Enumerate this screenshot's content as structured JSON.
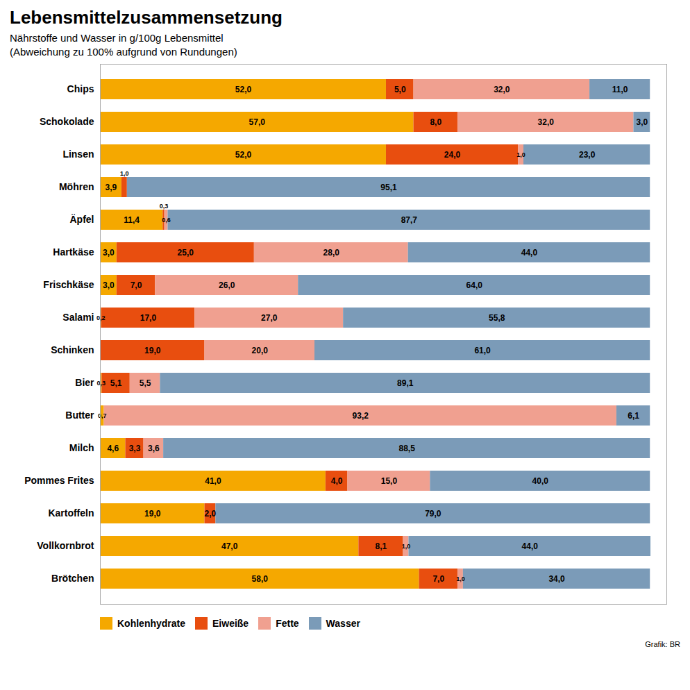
{
  "chart_data": {
    "type": "bar",
    "orientation": "horizontal",
    "stacked": true,
    "data_labels": true,
    "tick_labels": "y",
    "grid": false,
    "legend": "bottom",
    "title": "Lebensmittelzusammensetzung",
    "subtitle": [
      "Nährstoffe und Wasser in g/100g Lebensmittel",
      "(Abweichung zu 100% aufgrund von Rundungen)"
    ],
    "source": "Grafik: BR",
    "categories": [
      "Chips",
      "Schokolade",
      "Linsen",
      "Möhren",
      "Äpfel",
      "Hartkäse",
      "Frischkäse",
      "Salami",
      "Schinken",
      "Bier",
      "Butter",
      "Milch",
      "Pommes Frites",
      "Kartoffeln",
      "Vollkornbrot",
      "Brötchen"
    ],
    "xlim": [
      0,
      103
    ],
    "series": [
      {
        "name": "Kohlenhydrate",
        "color": "#F5A800",
        "values": [
          52.0,
          57.0,
          52.0,
          3.9,
          11.4,
          3.0,
          3.0,
          0.2,
          0.0,
          0.3,
          0.7,
          4.6,
          41.0,
          19.0,
          47.0,
          58.0
        ],
        "value_labels": [
          "52,0",
          "57,0",
          "52,0",
          "3,9",
          "11,4",
          "3,0",
          "3,0",
          "0,2",
          null,
          "0,3",
          "0,7",
          "4,6",
          "41,0",
          "19,0",
          "47,0",
          "58,0"
        ]
      },
      {
        "name": "Eiweiße",
        "color": "#E84E0F",
        "values": [
          5.0,
          8.0,
          24.0,
          1.0,
          0.3,
          25.0,
          7.0,
          17.0,
          19.0,
          5.1,
          0.0,
          3.3,
          4.0,
          2.0,
          8.1,
          7.0
        ],
        "value_labels": [
          "5,0",
          "8,0",
          "24,0",
          "1,0",
          "0,3",
          "25,0",
          "7,0",
          "17,0",
          "19,0",
          "5,1",
          null,
          "3,3",
          "4,0",
          "2,0",
          "8,1",
          "7,0"
        ]
      },
      {
        "name": "Fette",
        "color": "#F0A090",
        "values": [
          32.0,
          32.0,
          1.0,
          0.0,
          0.6,
          28.0,
          26.0,
          27.0,
          20.0,
          5.5,
          93.2,
          3.6,
          15.0,
          0.0,
          1.0,
          1.0
        ],
        "value_labels": [
          "32,0",
          "32,0",
          "1,0",
          null,
          "0,6",
          "28,0",
          "26,0",
          "27,0",
          "20,0",
          "5,5",
          "93,2",
          "3,6",
          "15,0",
          null,
          "1,0",
          "1,0"
        ]
      },
      {
        "name": "Wasser",
        "color": "#7B9BB8",
        "values": [
          11.0,
          3.0,
          23.0,
          95.1,
          87.7,
          44.0,
          64.0,
          55.8,
          61.0,
          89.1,
          6.1,
          88.5,
          40.0,
          79.0,
          44.0,
          34.0
        ],
        "value_labels": [
          "11,0",
          "3,0",
          "23,0",
          "95,1",
          "87,7",
          "44,0",
          "64,0",
          "55,8",
          "61,0",
          "89,1",
          "6,1",
          "88,5",
          "40,0",
          "79,0",
          "44,0",
          "34,0"
        ]
      }
    ]
  }
}
